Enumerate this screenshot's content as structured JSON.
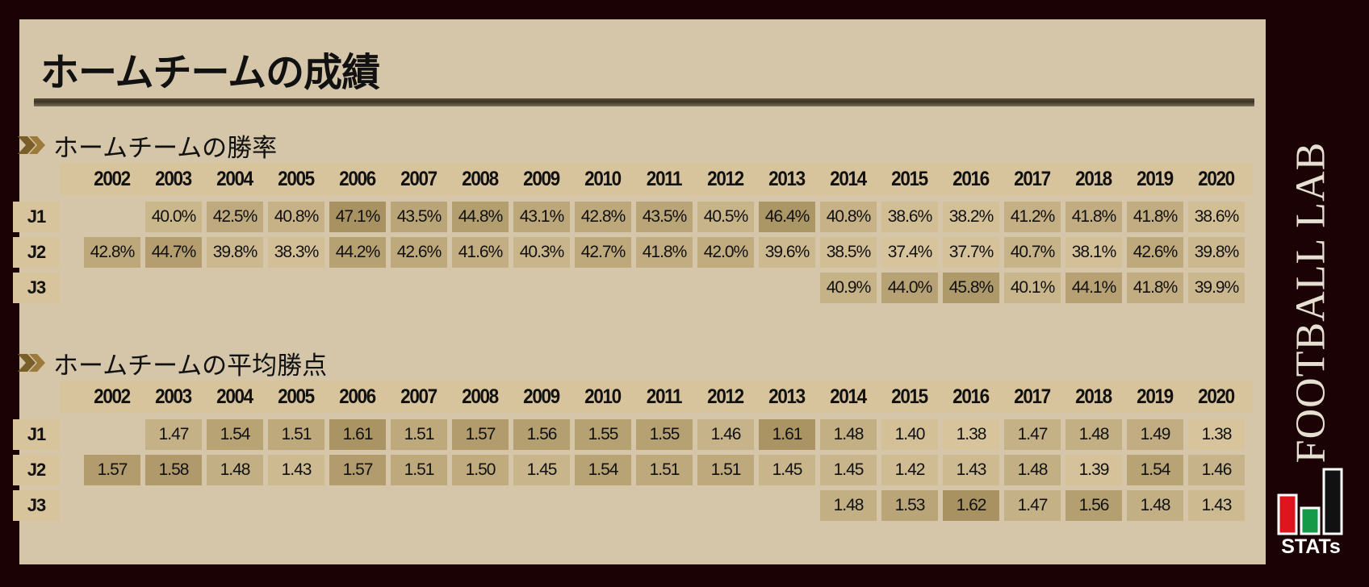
{
  "title": "ホームチームの成績",
  "colors": {
    "background": "#1b0204",
    "panel": "#d5c6aa",
    "header_cell": "#d7c49c",
    "cell_low": "#d7c49c",
    "cell_high": "#a89262"
  },
  "chart_data": [
    {
      "type": "table",
      "title": "ホームチームの勝率",
      "years": [
        "2002",
        "2003",
        "2004",
        "2005",
        "2006",
        "2007",
        "2008",
        "2009",
        "2010",
        "2011",
        "2012",
        "2013",
        "2014",
        "2015",
        "2016",
        "2017",
        "2018",
        "2019",
        "2020"
      ],
      "rows": [
        {
          "league": "J1",
          "values": [
            "",
            "40.0%",
            "42.5%",
            "40.8%",
            "47.1%",
            "43.5%",
            "44.8%",
            "43.1%",
            "42.8%",
            "43.5%",
            "40.5%",
            "46.4%",
            "40.8%",
            "38.6%",
            "38.2%",
            "41.2%",
            "41.8%",
            "41.8%",
            "38.6%"
          ]
        },
        {
          "league": "J2",
          "values": [
            "42.8%",
            "44.7%",
            "39.8%",
            "38.3%",
            "44.2%",
            "42.6%",
            "41.6%",
            "40.3%",
            "42.7%",
            "41.8%",
            "42.0%",
            "39.6%",
            "38.5%",
            "37.4%",
            "37.7%",
            "40.7%",
            "38.1%",
            "42.6%",
            "39.8%"
          ]
        },
        {
          "league": "J3",
          "values": [
            "",
            "",
            "",
            "",
            "",
            "",
            "",
            "",
            "",
            "",
            "",
            "",
            "40.9%",
            "44.0%",
            "45.8%",
            "40.1%",
            "44.1%",
            "41.8%",
            "39.9%"
          ]
        }
      ]
    },
    {
      "type": "table",
      "title": "ホームチームの平均勝点",
      "years": [
        "2002",
        "2003",
        "2004",
        "2005",
        "2006",
        "2007",
        "2008",
        "2009",
        "2010",
        "2011",
        "2012",
        "2013",
        "2014",
        "2015",
        "2016",
        "2017",
        "2018",
        "2019",
        "2020"
      ],
      "rows": [
        {
          "league": "J1",
          "values": [
            "",
            "1.47",
            "1.54",
            "1.51",
            "1.61",
            "1.51",
            "1.57",
            "1.56",
            "1.55",
            "1.55",
            "1.46",
            "1.61",
            "1.48",
            "1.40",
            "1.38",
            "1.47",
            "1.48",
            "1.49",
            "1.38"
          ]
        },
        {
          "league": "J2",
          "values": [
            "1.57",
            "1.58",
            "1.48",
            "1.43",
            "1.57",
            "1.51",
            "1.50",
            "1.45",
            "1.54",
            "1.51",
            "1.51",
            "1.45",
            "1.45",
            "1.42",
            "1.43",
            "1.48",
            "1.39",
            "1.54",
            "1.46"
          ]
        },
        {
          "league": "J3",
          "values": [
            "",
            "",
            "",
            "",
            "",
            "",
            "",
            "",
            "",
            "",
            "",
            "",
            "1.48",
            "1.53",
            "1.62",
            "1.47",
            "1.56",
            "1.48",
            "1.43"
          ]
        }
      ]
    }
  ],
  "brand": {
    "name": "FOOTBALL LAB",
    "stats_label": "STATs",
    "logo_colors": {
      "red": "#e0141c",
      "green": "#159a48",
      "black": "#111111",
      "outline": "#ffffff"
    }
  }
}
